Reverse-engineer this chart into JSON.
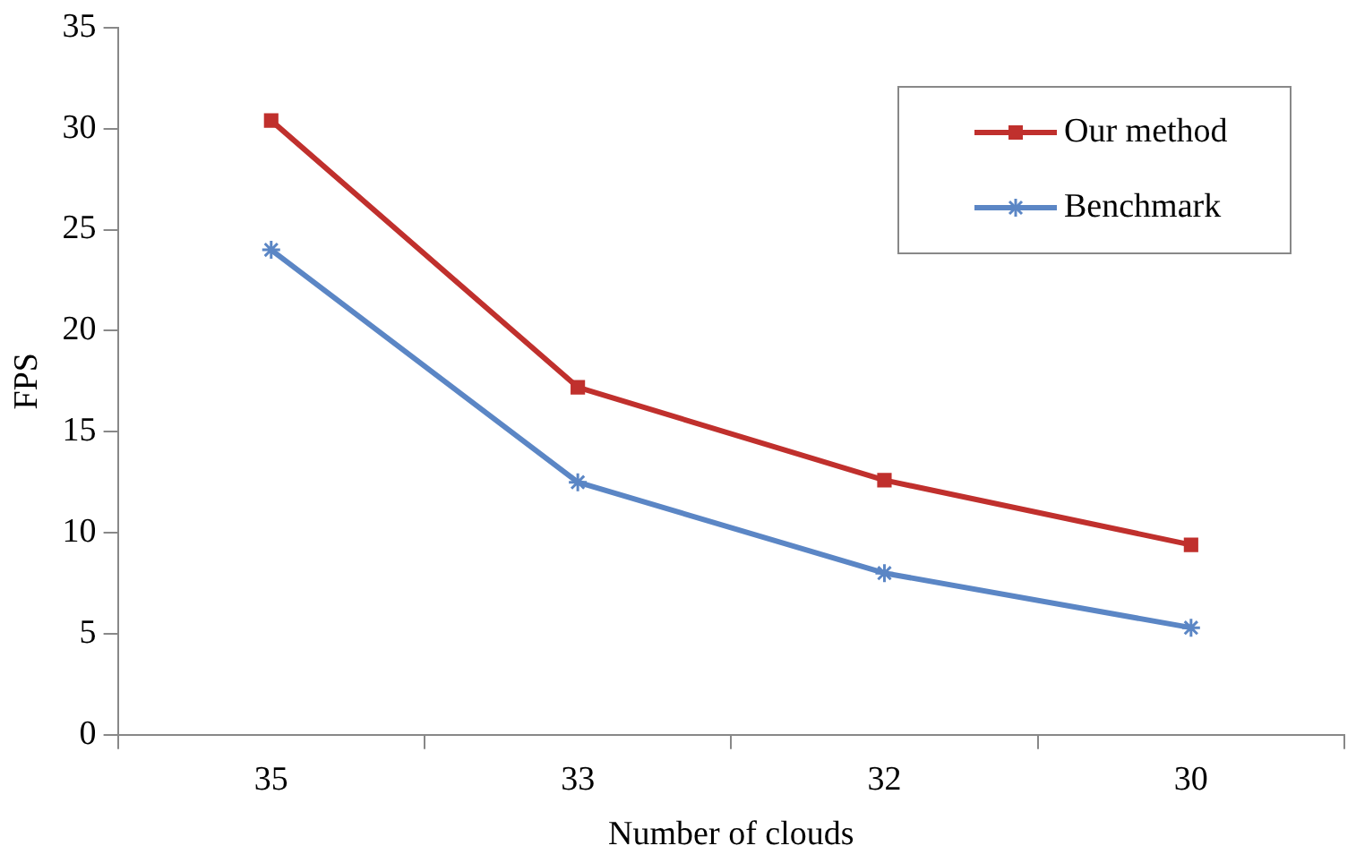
{
  "chart_data": {
    "type": "line",
    "xlabel": "Number of clouds",
    "ylabel": "FPS",
    "categories": [
      "35",
      "33",
      "32",
      "30"
    ],
    "series": [
      {
        "name": "Our method",
        "color": "#c0302d",
        "marker": "square",
        "values": [
          30.4,
          17.2,
          12.6,
          9.4
        ]
      },
      {
        "name": "Benchmark",
        "color": "#5b86c5",
        "marker": "cross",
        "values": [
          24.0,
          12.5,
          8.0,
          5.3
        ]
      }
    ],
    "ylim": [
      0,
      35
    ],
    "yticks": [
      0,
      5,
      10,
      15,
      20,
      25,
      30,
      35
    ],
    "grid": false,
    "legend": "top right",
    "line_style": "solid"
  }
}
